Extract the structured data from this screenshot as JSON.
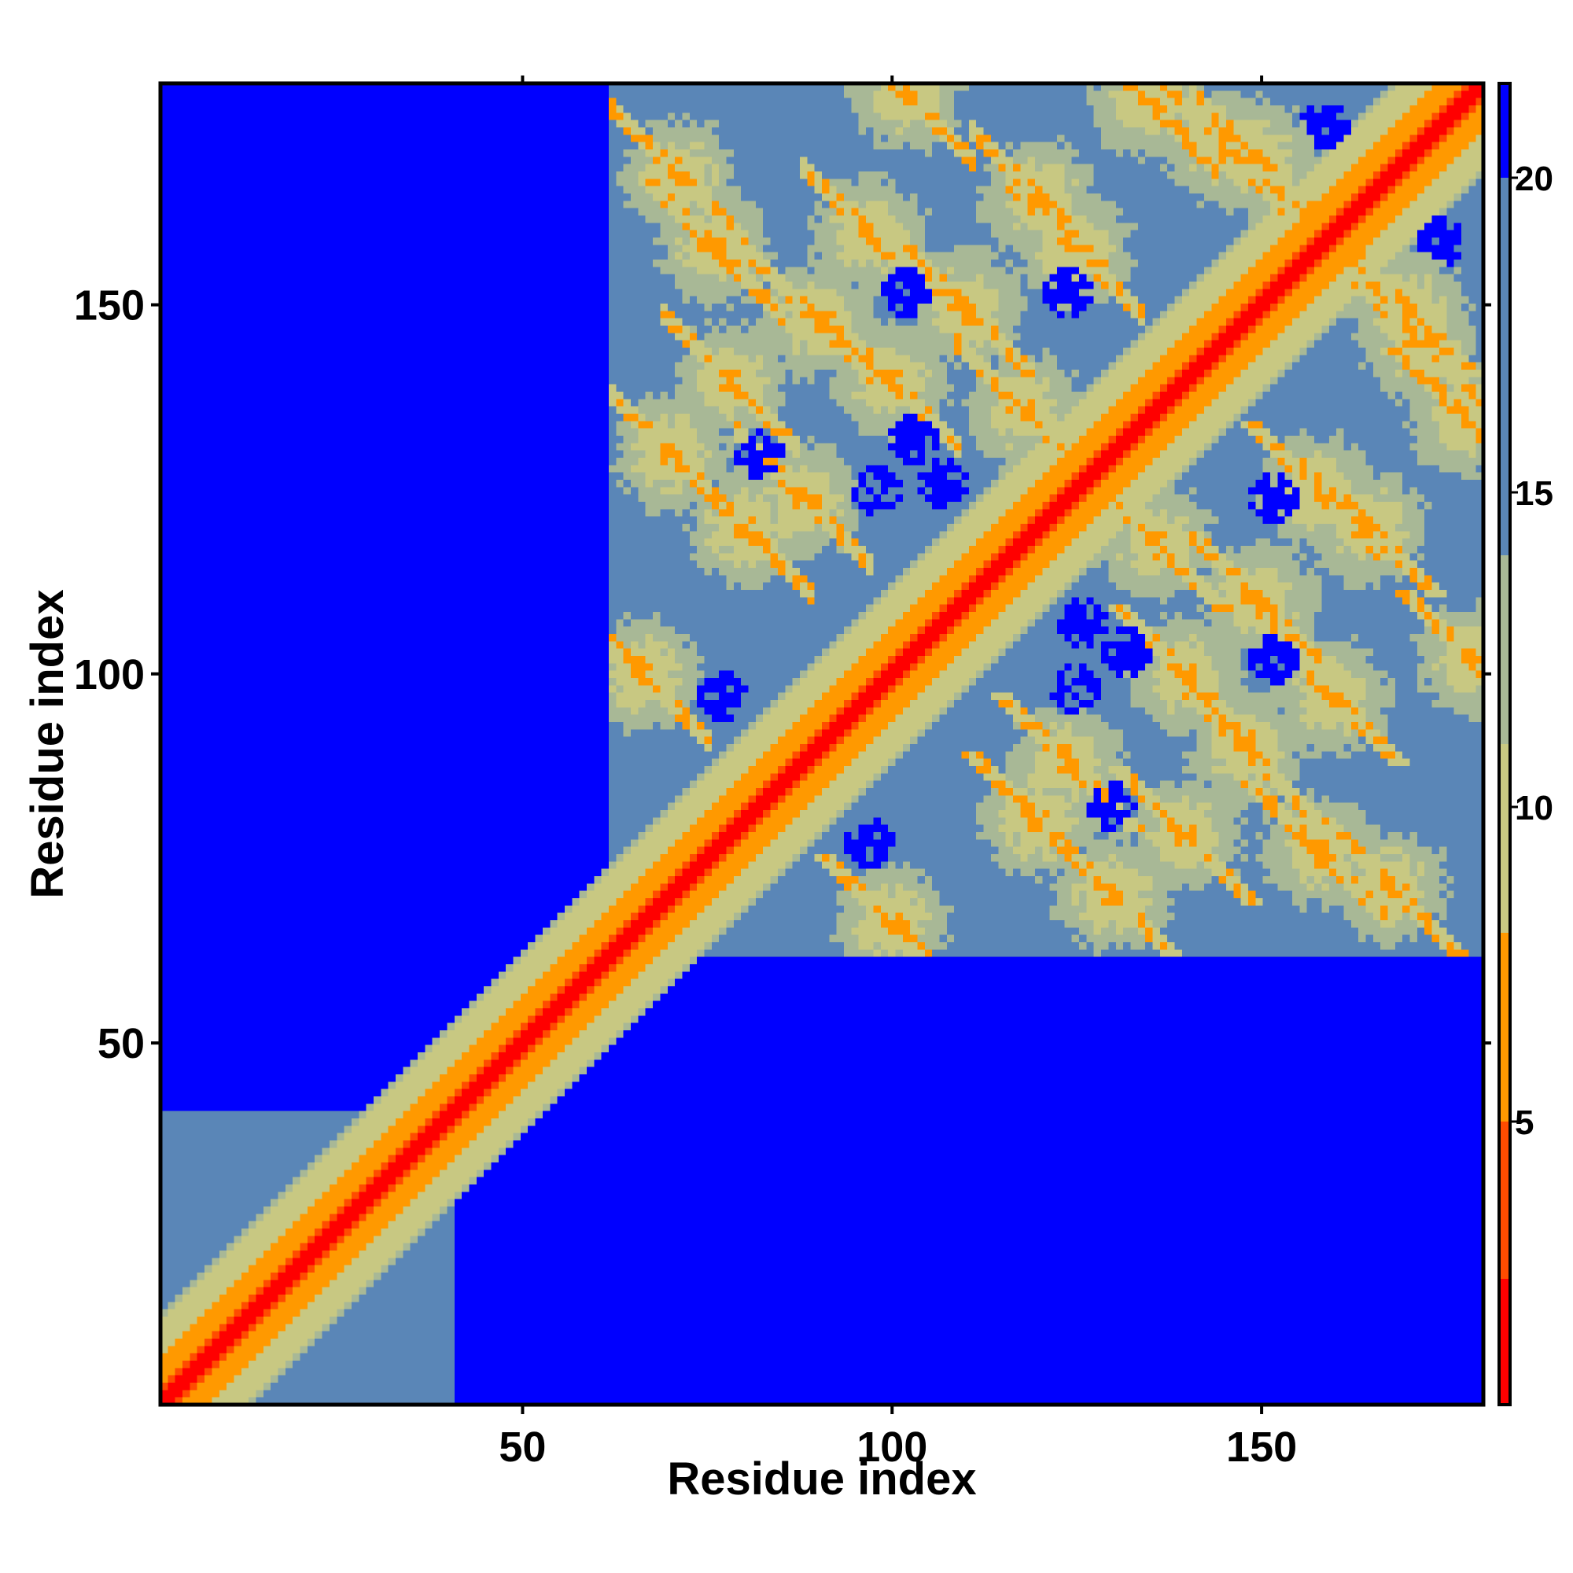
{
  "chart_data": {
    "type": "heatmap",
    "title": "",
    "xlabel": "Residue index",
    "ylabel": "Residue index",
    "x_range": [
      1,
      180
    ],
    "y_range": [
      1,
      180
    ],
    "x_ticks": [
      50,
      100,
      150
    ],
    "y_ticks": [
      50,
      100,
      150
    ],
    "colorbar": {
      "range": [
        0.5,
        21.5
      ],
      "ticks": [
        5,
        10,
        15,
        20
      ],
      "bins": [
        {
          "from": 0.5,
          "to": 2.5,
          "color": "#ff0000"
        },
        {
          "from": 2.5,
          "to": 5.0,
          "color": "#ff4c00"
        },
        {
          "from": 5.0,
          "to": 8.0,
          "color": "#ff9900"
        },
        {
          "from": 8.0,
          "to": 11.0,
          "color": "#c8c882"
        },
        {
          "from": 11.0,
          "to": 14.0,
          "color": "#a8b896"
        },
        {
          "from": 14.0,
          "to": 20.0,
          "color": "#5a86b7"
        },
        {
          "from": 20.0,
          "to": 21.5,
          "color": "#0000ff"
        }
      ]
    },
    "domains": [
      {
        "start": 1,
        "end": 40
      },
      {
        "start": 62,
        "end": 180
      }
    ],
    "contact_arcs": [
      [
        71,
        168
      ],
      [
        76,
        158
      ],
      [
        97,
        160
      ],
      [
        102,
        179
      ],
      [
        118,
        136
      ],
      [
        125,
        158
      ],
      [
        90,
        148
      ],
      [
        120,
        165
      ],
      [
        80,
        120
      ],
      [
        145,
        172
      ],
      [
        66,
        100
      ],
      [
        78,
        140
      ],
      [
        110,
        150
      ],
      [
        70,
        130
      ],
      [
        135,
        178
      ],
      [
        88,
        124
      ],
      [
        100,
        140
      ],
      [
        150,
        170
      ]
    ],
    "blue_islands": [
      [
        77,
        97
      ],
      [
        82,
        130
      ],
      [
        107,
        126
      ],
      [
        125,
        98
      ],
      [
        132,
        103
      ],
      [
        152,
        124
      ],
      [
        102,
        152
      ],
      [
        168,
        168
      ],
      [
        175,
        159
      ]
    ],
    "grid": false,
    "legend": "colorbar-right"
  }
}
